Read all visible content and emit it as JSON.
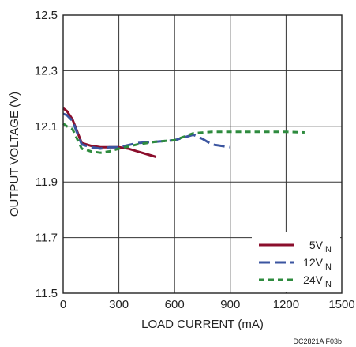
{
  "chart_data": {
    "type": "line",
    "xlabel": "LOAD CURRENT (mA)",
    "ylabel": "OUTPUT VOLTAGE (V)",
    "xlim": [
      0,
      1500
    ],
    "ylim": [
      11.5,
      12.5
    ],
    "x_ticks": [
      "0",
      "300",
      "600",
      "900",
      "1200",
      "1500"
    ],
    "y_ticks": [
      "11.5",
      "11.7",
      "11.9",
      "12.1",
      "12.3",
      "12.5"
    ],
    "grid": true,
    "legend_position": "bottom-right",
    "series": [
      {
        "name": "5V",
        "name_sub": "IN",
        "color": "#8b0e2c",
        "dash": "solid",
        "x": [
          0,
          20,
          50,
          100,
          150,
          200,
          250,
          300,
          350,
          400,
          450,
          500
        ],
        "y": [
          12.165,
          12.155,
          12.125,
          12.04,
          12.03,
          12.025,
          12.025,
          12.025,
          12.02,
          12.01,
          12.0,
          11.99
        ]
      },
      {
        "name": "12V",
        "name_sub": "IN",
        "color": "#3b55a0",
        "dash": "longdash",
        "x": [
          0,
          20,
          50,
          100,
          150,
          200,
          250,
          300,
          400,
          500,
          600,
          650,
          700,
          750,
          800,
          900
        ],
        "y": [
          12.145,
          12.14,
          12.12,
          12.035,
          12.025,
          12.02,
          12.025,
          12.025,
          12.04,
          12.045,
          12.05,
          12.06,
          12.07,
          12.055,
          12.035,
          12.025
        ]
      },
      {
        "name": "24V",
        "name_sub": "IN",
        "color": "#2e8b3e",
        "dash": "shortdash",
        "x": [
          0,
          20,
          50,
          100,
          150,
          200,
          250,
          300,
          400,
          500,
          600,
          700,
          800,
          900,
          1000,
          1100,
          1200,
          1300
        ],
        "y": [
          12.11,
          12.1,
          12.09,
          12.02,
          12.01,
          12.005,
          12.01,
          12.02,
          12.035,
          12.045,
          12.05,
          12.075,
          12.08,
          12.08,
          12.08,
          12.08,
          12.08,
          12.078
        ]
      }
    ]
  },
  "figure_code": "DC2821A F03b"
}
